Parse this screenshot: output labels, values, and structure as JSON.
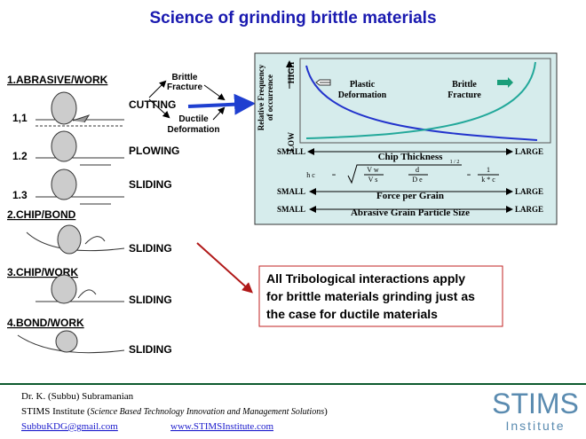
{
  "title": "Science of grinding brittle materials",
  "interactions": [
    {
      "label": "1.ABRASIVE/WORK",
      "sublabels": [
        "1,1",
        "1.2",
        "1.3"
      ]
    },
    {
      "label": "2.CHIP/BOND"
    },
    {
      "label": "3.CHIP/WORK"
    },
    {
      "label": "4.BOND/WORK"
    }
  ],
  "mechanisms": [
    "CUTTING",
    "PLOWING",
    "SLIDING",
    "SLIDING",
    "SLIDING",
    "SLIDING"
  ],
  "cutting_modes": {
    "top": [
      "Brittle",
      "Fracture"
    ],
    "bottom": [
      "Ductile",
      "Deformation"
    ]
  },
  "panel": {
    "y_label": [
      "Relative Frequency",
      "of occurrence"
    ],
    "y_high": "HIGH",
    "y_low": "LOW",
    "curve_labels": {
      "plastic": [
        "Plastic",
        "Deformation"
      ],
      "brittle": [
        "Brittle",
        "Fracture"
      ]
    },
    "scales": [
      {
        "left": "SMALL",
        "right": "LARGE",
        "label": "Chip Thickness"
      },
      {
        "left": "SMALL",
        "right": "LARGE",
        "label": "Force per Grain"
      },
      {
        "left": "SMALL",
        "right": "LARGE",
        "label": "Abrasive Grain Particle Size"
      }
    ],
    "formula": {
      "lhs": "h c",
      "eq": "=",
      "t1": [
        "V w",
        "V s"
      ],
      "t2": [
        "d",
        "D e"
      ],
      "power": "1 / 2",
      "t3": [
        "1",
        "k * c"
      ]
    }
  },
  "callout": [
    "All Tribological interactions apply",
    "for brittle materials grinding just as",
    "the case for ductile materials"
  ],
  "footer": {
    "author": "Dr. K. (Subbu) Subramanian",
    "org": "STIMS Institute (",
    "org_desc": "Science Based Technology Innovation and Management Solutions",
    "org_close": ")",
    "email": "SubbuKDG@gmail.com",
    "web": "www.STIMSInstitute.com",
    "logo": "STIMS",
    "logo_sub": "Institute"
  }
}
